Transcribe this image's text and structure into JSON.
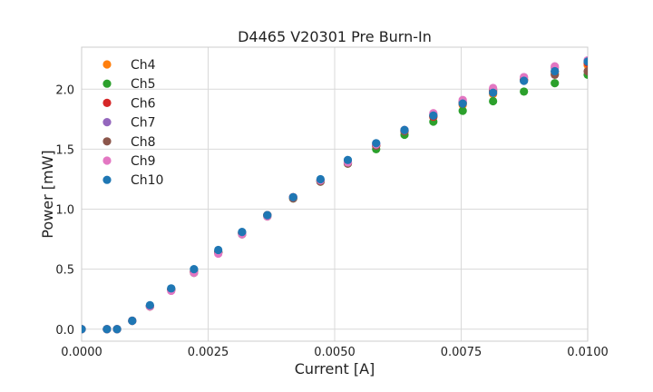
{
  "chart_data": {
    "type": "scatter",
    "title": "D4465 V20301 Pre Burn-In",
    "xlabel": "Current [A]",
    "ylabel": "Power [mW]",
    "xlim": [
      0,
      0.01
    ],
    "ylim": [
      -0.1,
      2.35
    ],
    "xticks": [
      0,
      0.0025,
      0.005,
      0.0075,
      0.01
    ],
    "xtick_labels": [
      "0.0000",
      "0.0025",
      "0.0050",
      "0.0075",
      "0.0100"
    ],
    "yticks": [
      0,
      0.5,
      1.0,
      1.5,
      2.0
    ],
    "ytick_labels": [
      "0.0",
      "0.5",
      "1.0",
      "1.5",
      "2.0"
    ],
    "grid": true,
    "legend_position": "upper-left",
    "x": [
      0,
      0.0005,
      0.0007,
      0.001,
      0.00135,
      0.00177,
      0.00222,
      0.0027,
      0.00317,
      0.00367,
      0.00418,
      0.00472,
      0.00526,
      0.00582,
      0.00638,
      0.00695,
      0.00753,
      0.00813,
      0.00874,
      0.00935,
      0.01
    ],
    "series": [
      {
        "name": "Ch4",
        "color": "#ff7f0e",
        "values": [
          0,
          0,
          0,
          0.07,
          0.19,
          0.33,
          0.48,
          0.64,
          0.8,
          0.95,
          1.1,
          1.24,
          1.39,
          1.53,
          1.65,
          1.77,
          1.87,
          1.96,
          2.08,
          2.13,
          2.2
        ]
      },
      {
        "name": "Ch5",
        "color": "#2ca02c",
        "values": [
          0,
          0,
          0,
          0.07,
          0.19,
          0.33,
          0.47,
          0.64,
          0.79,
          0.94,
          1.09,
          1.23,
          1.38,
          1.5,
          1.62,
          1.73,
          1.82,
          1.9,
          1.98,
          2.05,
          2.12
        ]
      },
      {
        "name": "Ch6",
        "color": "#d62728",
        "values": [
          0,
          0,
          0,
          0.07,
          0.19,
          0.33,
          0.48,
          0.64,
          0.8,
          0.95,
          1.1,
          1.24,
          1.39,
          1.53,
          1.65,
          1.77,
          1.88,
          1.98,
          2.08,
          2.15,
          2.22
        ]
      },
      {
        "name": "Ch7",
        "color": "#9467bd",
        "values": [
          0,
          0,
          0,
          0.07,
          0.19,
          0.33,
          0.48,
          0.64,
          0.8,
          0.95,
          1.1,
          1.24,
          1.39,
          1.54,
          1.66,
          1.79,
          1.9,
          2.0,
          2.1,
          2.18,
          2.24
        ]
      },
      {
        "name": "Ch8",
        "color": "#8c564b",
        "values": [
          0,
          0,
          0,
          0.07,
          0.19,
          0.33,
          0.48,
          0.64,
          0.8,
          0.95,
          1.09,
          1.23,
          1.38,
          1.53,
          1.65,
          1.78,
          1.89,
          1.99,
          2.07,
          2.12,
          2.15
        ]
      },
      {
        "name": "Ch9",
        "color": "#e377c2",
        "values": [
          0,
          0,
          0,
          0.07,
          0.19,
          0.32,
          0.47,
          0.63,
          0.79,
          0.94,
          1.1,
          1.24,
          1.39,
          1.54,
          1.66,
          1.8,
          1.91,
          2.01,
          2.1,
          2.19,
          2.24
        ]
      },
      {
        "name": "Ch10",
        "color": "#1f77b4",
        "values": [
          0,
          0,
          0,
          0.07,
          0.2,
          0.34,
          0.5,
          0.66,
          0.81,
          0.95,
          1.1,
          1.25,
          1.41,
          1.55,
          1.66,
          1.78,
          1.88,
          1.97,
          2.07,
          2.15,
          2.23
        ]
      }
    ]
  }
}
